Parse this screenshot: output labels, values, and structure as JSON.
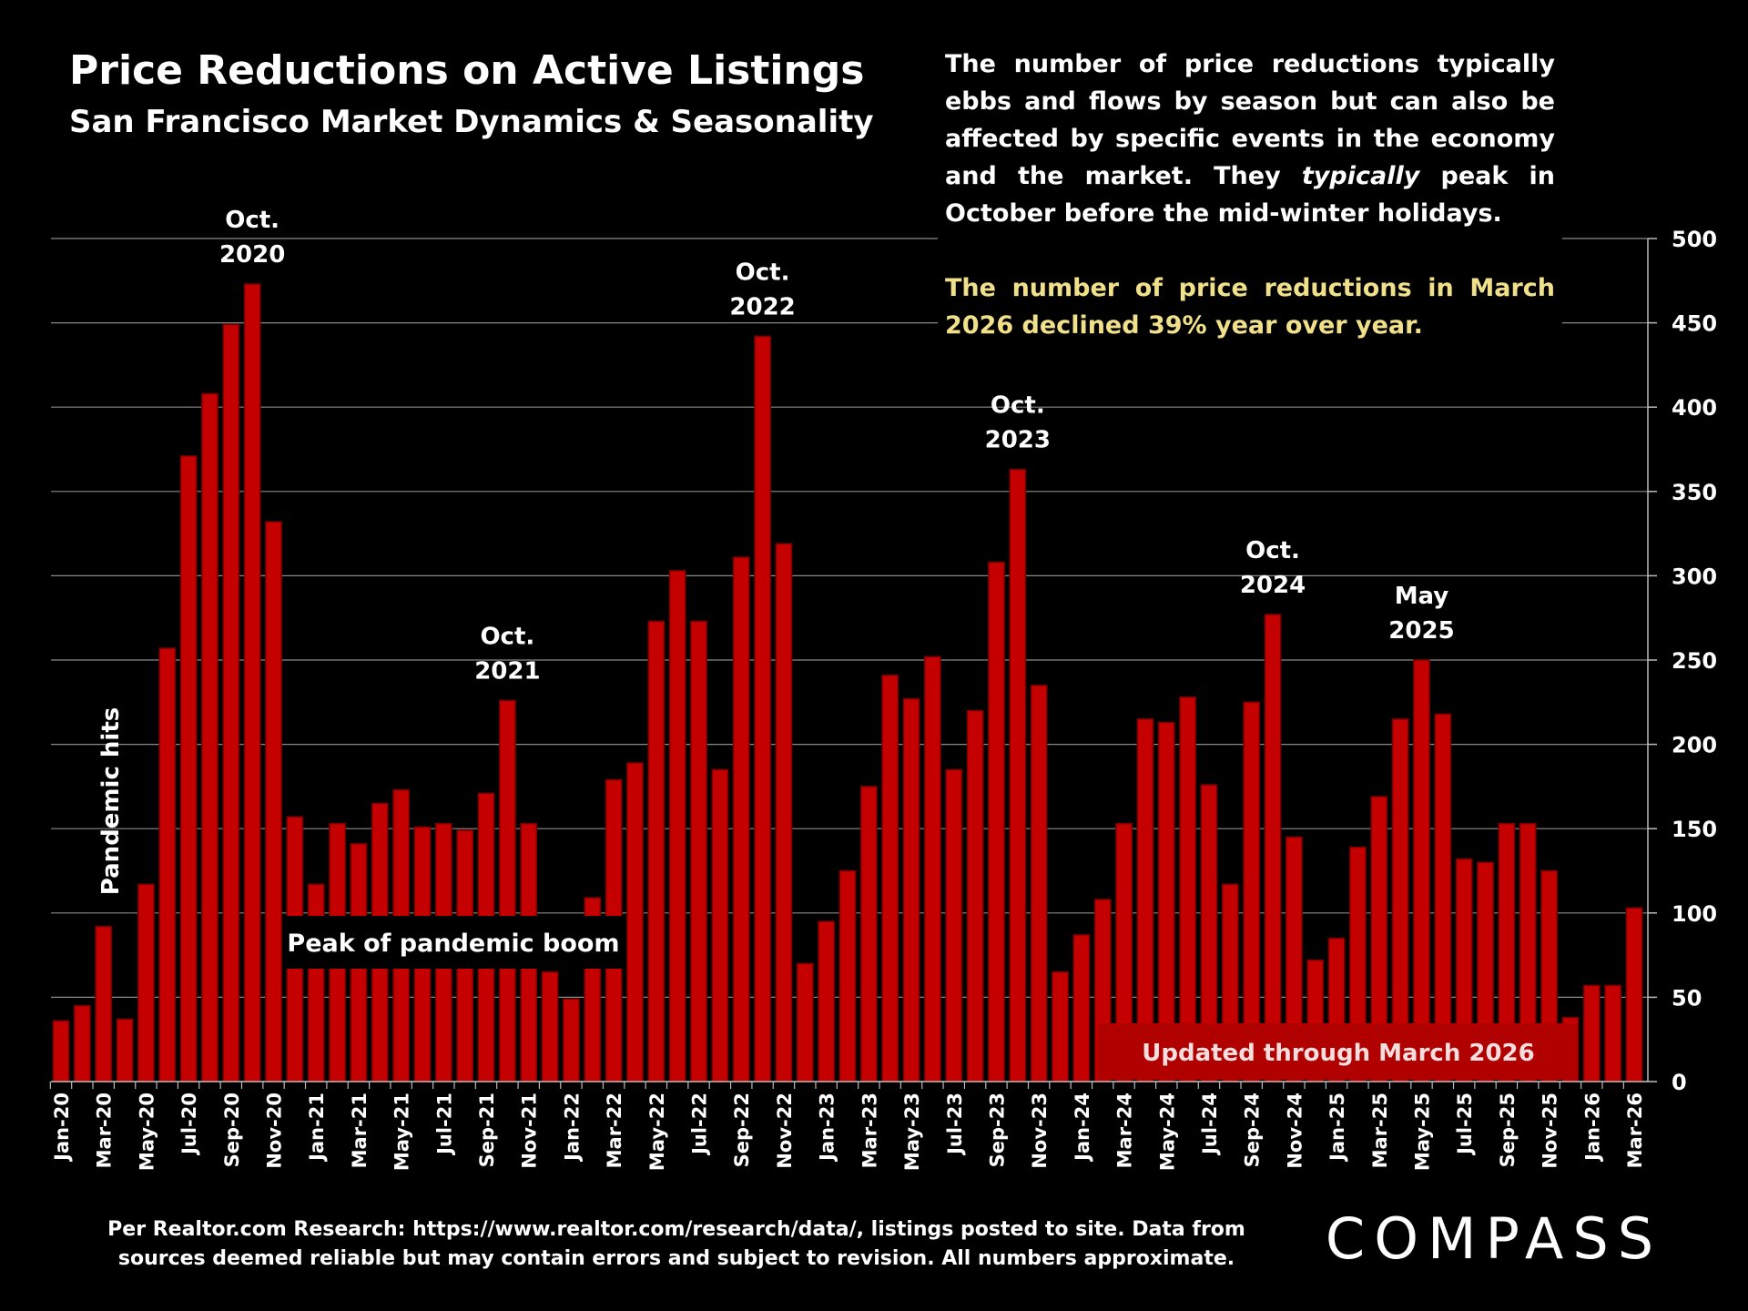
{
  "chart_data": {
    "type": "bar",
    "title": "Price Reductions on Active Listings",
    "subtitle": "San Francisco Market Dynamics & Seasonality",
    "note": [
      "The number of price reductions typically ebbs and flows by season but can also be affected by specific events in the economy and the market. They ",
      "typically",
      " peak in October before the mid-winter holidays."
    ],
    "highlight": "The number of price reductions in March 2026 declined 39% year over year.",
    "categories": [
      "Jan-20",
      null,
      "Mar-20",
      null,
      "May-20",
      null,
      "Jul-20",
      null,
      "Sep-20",
      null,
      "Nov-20",
      null,
      "Jan-21",
      null,
      "Mar-21",
      null,
      "May-21",
      null,
      "Jul-21",
      null,
      "Sep-21",
      null,
      "Nov-21",
      null,
      "Jan-22",
      null,
      "Mar-22",
      null,
      "May-22",
      null,
      "Jul-22",
      null,
      "Sep-22",
      null,
      "Nov-22",
      null,
      "Jan-23",
      null,
      "Mar-23",
      null,
      "May-23",
      null,
      "Jul-23",
      null,
      "Sep-23",
      null,
      "Nov-23",
      null,
      "Jan-24",
      null,
      "Mar-24",
      null,
      "May-24",
      null,
      "Jul-24",
      null,
      "Sep-24",
      null,
      "Nov-24",
      null,
      "Jan-25",
      null,
      "Mar-25",
      null,
      "May-25",
      null,
      "Jul-25",
      null,
      "Sep-25",
      null,
      "Nov-25",
      null,
      "Jan-26",
      null,
      "Mar-26"
    ],
    "values": [
      36,
      45,
      92,
      37,
      117,
      257,
      371,
      408,
      449,
      473,
      332,
      157,
      117,
      153,
      141,
      165,
      173,
      151,
      153,
      149,
      171,
      226,
      153,
      65,
      49,
      109,
      179,
      189,
      273,
      303,
      273,
      185,
      311,
      442,
      319,
      70,
      95,
      125,
      175,
      241,
      227,
      252,
      185,
      220,
      308,
      363,
      235,
      65,
      87,
      108,
      153,
      215,
      213,
      228,
      176,
      117,
      225,
      277,
      145,
      72,
      85,
      139,
      169,
      215,
      250,
      218,
      132,
      130,
      153,
      153,
      125,
      38,
      57,
      57,
      103
    ],
    "color": "#c40000",
    "ylim": [
      0,
      500
    ],
    "yticks": [
      0,
      50,
      100,
      150,
      200,
      250,
      300,
      350,
      400,
      450,
      500
    ],
    "grid": true,
    "annotations": [
      [
        "Oct.",
        "2020"
      ],
      [
        "Oct.",
        "2021"
      ],
      [
        "Oct.",
        "2022"
      ],
      [
        "Oct.",
        "2023"
      ],
      [
        "Oct.",
        "2024"
      ],
      [
        "May",
        "2025"
      ]
    ],
    "callouts": [
      "Pandemic hits",
      "Peak of pandemic boom",
      "Updated through March 2026"
    ],
    "source": [
      "Per Realtor.com Research:  https://www.realtor.com/research/data/, listings posted to site. Data from",
      "sources deemed reliable but may contain errors and subject to revision. All numbers approximate."
    ],
    "brand": "COMPASS"
  }
}
